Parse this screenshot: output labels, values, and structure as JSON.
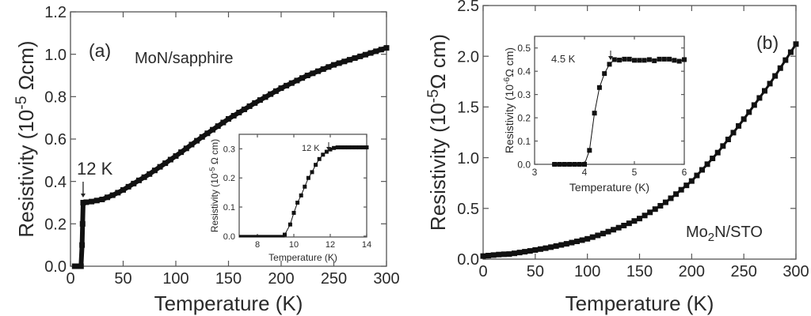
{
  "chart_data": [
    {
      "id": "a",
      "type": "scatter",
      "panel_label": "(a)",
      "sample_label": "MoN/sapphire",
      "xlabel": "Temperature (K)",
      "ylabel": {
        "pre": "Resistivity (10",
        "sup": "-5",
        "post": " Ωcm)"
      },
      "xlim": [
        0,
        300
      ],
      "ylim": [
        0,
        1.2
      ],
      "xticks": [
        "0",
        "50",
        "100",
        "150",
        "200",
        "250",
        "300"
      ],
      "yticks": [
        "0.0",
        "0.2",
        "0.4",
        "0.6",
        "0.8",
        "1.0",
        "1.2"
      ],
      "annotation": {
        "text": "12 K",
        "x": 12,
        "y": 0.3
      },
      "points": [
        [
          4,
          0
        ],
        [
          6,
          0
        ],
        [
          8,
          0
        ],
        [
          10,
          0
        ],
        [
          11,
          0.1
        ],
        [
          11.5,
          0.2
        ],
        [
          12,
          0.3
        ],
        [
          15,
          0.302
        ],
        [
          20,
          0.305
        ],
        [
          25,
          0.31
        ],
        [
          30,
          0.315
        ],
        [
          35,
          0.325
        ],
        [
          40,
          0.335
        ],
        [
          45,
          0.347
        ],
        [
          50,
          0.36
        ],
        [
          55,
          0.375
        ],
        [
          60,
          0.39
        ],
        [
          65,
          0.405
        ],
        [
          70,
          0.42
        ],
        [
          75,
          0.435
        ],
        [
          80,
          0.452
        ],
        [
          85,
          0.469
        ],
        [
          90,
          0.486
        ],
        [
          95,
          0.503
        ],
        [
          100,
          0.52
        ],
        [
          105,
          0.538
        ],
        [
          110,
          0.556
        ],
        [
          115,
          0.574
        ],
        [
          120,
          0.592
        ],
        [
          125,
          0.61
        ],
        [
          130,
          0.627
        ],
        [
          135,
          0.644
        ],
        [
          140,
          0.661
        ],
        [
          145,
          0.678
        ],
        [
          150,
          0.695
        ],
        [
          155,
          0.71
        ],
        [
          160,
          0.725
        ],
        [
          165,
          0.74
        ],
        [
          170,
          0.755
        ],
        [
          175,
          0.77
        ],
        [
          180,
          0.784
        ],
        [
          185,
          0.798
        ],
        [
          190,
          0.812
        ],
        [
          195,
          0.826
        ],
        [
          200,
          0.84
        ],
        [
          205,
          0.852
        ],
        [
          210,
          0.864
        ],
        [
          215,
          0.876
        ],
        [
          220,
          0.888
        ],
        [
          225,
          0.9
        ],
        [
          230,
          0.91
        ],
        [
          235,
          0.92
        ],
        [
          240,
          0.93
        ],
        [
          245,
          0.94
        ],
        [
          250,
          0.95
        ],
        [
          255,
          0.958
        ],
        [
          260,
          0.966
        ],
        [
          265,
          0.974
        ],
        [
          270,
          0.982
        ],
        [
          275,
          0.99
        ],
        [
          280,
          0.998
        ],
        [
          285,
          1.006
        ],
        [
          290,
          1.014
        ],
        [
          295,
          1.022
        ],
        [
          300,
          1.03
        ]
      ],
      "inset": {
        "xlabel": "Temperature (K)",
        "ylabel": {
          "pre": "Resistivity (10",
          "sup": "-5",
          "post": " Ω cm)"
        },
        "xlim": [
          7,
          14
        ],
        "ylim": [
          -0.003,
          0.35
        ],
        "xticks": [
          "8",
          "10",
          "12",
          "14"
        ],
        "yticks": [
          "0.0",
          "0.1",
          "0.2",
          "0.3"
        ],
        "annotation": {
          "text": "12 K",
          "x": 12,
          "y": 0.3
        },
        "line": [
          [
            7,
            0
          ],
          [
            9.5,
            0
          ]
        ],
        "points": [
          [
            9.5,
            0.005
          ],
          [
            9.8,
            0.04
          ],
          [
            10,
            0.08
          ],
          [
            10.2,
            0.115
          ],
          [
            10.4,
            0.14
          ],
          [
            10.6,
            0.17
          ],
          [
            10.8,
            0.2
          ],
          [
            11,
            0.22
          ],
          [
            11.2,
            0.245
          ],
          [
            11.4,
            0.265
          ],
          [
            11.6,
            0.28
          ],
          [
            11.8,
            0.29
          ],
          [
            12,
            0.298
          ],
          [
            12.2,
            0.303
          ],
          [
            12.4,
            0.305
          ],
          [
            12.6,
            0.305
          ],
          [
            12.8,
            0.305
          ],
          [
            13,
            0.305
          ],
          [
            13.2,
            0.305
          ],
          [
            13.4,
            0.305
          ],
          [
            13.6,
            0.305
          ],
          [
            13.8,
            0.305
          ],
          [
            14,
            0.305
          ]
        ]
      }
    },
    {
      "id": "b",
      "type": "scatter",
      "panel_label": "(b)",
      "sample_label": {
        "pre": "Mo",
        "sub": "2",
        "post": "N/STO"
      },
      "xlabel": "Temperature (K)",
      "ylabel": {
        "pre": "Resistivity (10",
        "sup": "-5",
        "post": "Ω cm)"
      },
      "xlim": [
        0,
        300
      ],
      "ylim": [
        0,
        2.5
      ],
      "xticks": [
        "0",
        "50",
        "100",
        "150",
        "200",
        "250",
        "300"
      ],
      "yticks": [
        "0.0",
        "0.5",
        "1.0",
        "1.5",
        "2.0",
        "2.5"
      ],
      "points": [
        [
          0,
          0.03
        ],
        [
          5,
          0.035
        ],
        [
          10,
          0.04
        ],
        [
          15,
          0.045
        ],
        [
          20,
          0.048
        ],
        [
          25,
          0.05
        ],
        [
          30,
          0.057
        ],
        [
          35,
          0.065
        ],
        [
          40,
          0.073
        ],
        [
          45,
          0.081
        ],
        [
          50,
          0.09
        ],
        [
          55,
          0.099
        ],
        [
          60,
          0.108
        ],
        [
          65,
          0.118
        ],
        [
          70,
          0.129
        ],
        [
          75,
          0.14
        ],
        [
          80,
          0.151
        ],
        [
          85,
          0.163
        ],
        [
          90,
          0.175
        ],
        [
          95,
          0.187
        ],
        [
          100,
          0.2
        ],
        [
          105,
          0.217
        ],
        [
          110,
          0.234
        ],
        [
          115,
          0.252
        ],
        [
          120,
          0.271
        ],
        [
          125,
          0.29
        ],
        [
          130,
          0.31
        ],
        [
          135,
          0.331
        ],
        [
          140,
          0.353
        ],
        [
          145,
          0.376
        ],
        [
          150,
          0.4
        ],
        [
          155,
          0.43
        ],
        [
          160,
          0.461
        ],
        [
          165,
          0.493
        ],
        [
          170,
          0.526
        ],
        [
          175,
          0.56
        ],
        [
          180,
          0.6
        ],
        [
          185,
          0.641
        ],
        [
          190,
          0.684
        ],
        [
          195,
          0.727
        ],
        [
          200,
          0.77
        ],
        [
          205,
          0.825
        ],
        [
          210,
          0.88
        ],
        [
          215,
          0.936
        ],
        [
          220,
          0.993
        ],
        [
          225,
          1.05
        ],
        [
          230,
          1.115
        ],
        [
          235,
          1.18
        ],
        [
          240,
          1.247
        ],
        [
          245,
          1.313
        ],
        [
          250,
          1.38
        ],
        [
          255,
          1.449
        ],
        [
          260,
          1.519
        ],
        [
          265,
          1.589
        ],
        [
          270,
          1.659
        ],
        [
          275,
          1.73
        ],
        [
          280,
          1.806
        ],
        [
          285,
          1.883
        ],
        [
          290,
          1.962
        ],
        [
          295,
          2.04
        ],
        [
          300,
          2.12
        ]
      ],
      "inset": {
        "xlabel": "Temperature (K)",
        "ylabel": {
          "pre": "Resistivity  (10",
          "sup": "-6",
          "post": "Ω cm)"
        },
        "xlim": [
          3,
          6
        ],
        "ylim": [
          0,
          0.55
        ],
        "xticks": [
          "3",
          "4",
          "5",
          "6"
        ],
        "yticks": [
          "0.0",
          "0.1",
          "0.2",
          "0.3",
          "0.4",
          "0.5"
        ],
        "annotation": {
          "text": "4.5 K",
          "x": 4.55,
          "y": 0.45
        },
        "line": [
          [
            3.35,
            0
          ],
          [
            4.0,
            0
          ]
        ],
        "points": [
          [
            3.4,
            0
          ],
          [
            3.5,
            0
          ],
          [
            3.6,
            0
          ],
          [
            3.7,
            0
          ],
          [
            3.8,
            0
          ],
          [
            3.9,
            0
          ],
          [
            4.0,
            0
          ],
          [
            4.1,
            0.06
          ],
          [
            4.2,
            0.22
          ],
          [
            4.3,
            0.33
          ],
          [
            4.4,
            0.39
          ],
          [
            4.5,
            0.43
          ],
          [
            4.6,
            0.45
          ],
          [
            4.7,
            0.448
          ],
          [
            4.8,
            0.452
          ],
          [
            4.9,
            0.452
          ],
          [
            5.0,
            0.447
          ],
          [
            5.1,
            0.447
          ],
          [
            5.2,
            0.447
          ],
          [
            5.3,
            0.45
          ],
          [
            5.4,
            0.445
          ],
          [
            5.5,
            0.452
          ],
          [
            5.6,
            0.452
          ],
          [
            5.7,
            0.452
          ],
          [
            5.8,
            0.447
          ],
          [
            5.9,
            0.443
          ],
          [
            6.0,
            0.45
          ]
        ]
      }
    }
  ]
}
